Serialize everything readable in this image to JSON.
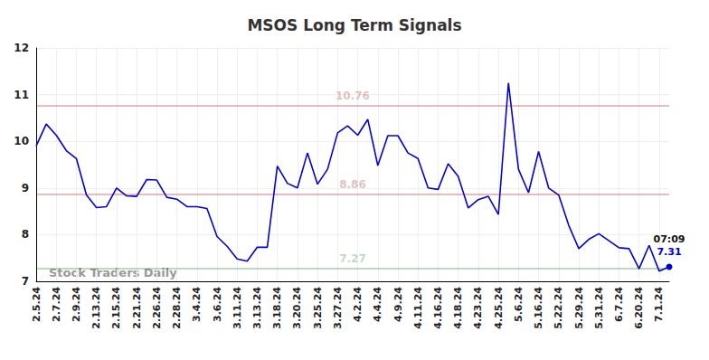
{
  "chart_data": {
    "type": "line",
    "title": "MSOS Long Term Signals",
    "categories": [
      "2.5.24",
      null,
      "2.7.24",
      null,
      "2.9.24",
      null,
      "2.13.24",
      null,
      "2.15.24",
      null,
      "2.21.24",
      null,
      "2.26.24",
      null,
      "2.28.24",
      null,
      "3.4.24",
      null,
      "3.6.24",
      null,
      "3.11.24",
      null,
      "3.13.24",
      null,
      "3.18.24",
      null,
      "3.20.24",
      null,
      "3.25.24",
      null,
      "3.27.24",
      null,
      "4.2.24",
      null,
      "4.4.24",
      null,
      "4.9.24",
      null,
      "4.11.24",
      null,
      "4.16.24",
      null,
      "4.18.24",
      null,
      "4.23.24",
      null,
      "4.25.24",
      null,
      "5.6.24",
      null,
      "5.16.24",
      null,
      "5.22.24",
      null,
      "5.29.24",
      null,
      "5.31.24",
      null,
      "6.7.24",
      null,
      "6.20.24",
      null,
      "7.1.24",
      null
    ],
    "values": [
      9.9,
      10.37,
      10.13,
      9.8,
      9.63,
      8.85,
      8.58,
      8.6,
      9.0,
      8.83,
      8.82,
      9.18,
      9.17,
      8.8,
      8.76,
      8.6,
      8.6,
      8.56,
      7.96,
      7.75,
      7.48,
      7.43,
      7.73,
      7.73,
      9.47,
      9.1,
      9.0,
      9.75,
      9.08,
      9.4,
      10.18,
      10.33,
      10.13,
      10.47,
      9.48,
      10.12,
      10.12,
      9.75,
      9.63,
      9.0,
      8.97,
      9.52,
      9.25,
      8.57,
      8.75,
      8.82,
      8.43,
      11.25,
      9.4,
      8.9,
      9.78,
      9.0,
      8.85,
      8.2,
      7.7,
      7.9,
      8.02,
      7.87,
      7.72,
      7.7,
      7.27,
      7.77,
      7.22,
      7.31
    ],
    "color": "#0000dd",
    "ylim": [
      7,
      12
    ],
    "yticks": [
      7,
      8,
      9,
      10,
      11,
      12
    ],
    "grid": true,
    "hlines": [
      {
        "value": 10.76,
        "color": "#8b0000"
      },
      {
        "value": 8.86,
        "color": "#8b0000"
      },
      {
        "value": 7.27,
        "color": "#006400"
      }
    ],
    "last_point": {
      "time": "07:09",
      "value": 7.31
    },
    "watermark": "Stock Traders Daily"
  }
}
